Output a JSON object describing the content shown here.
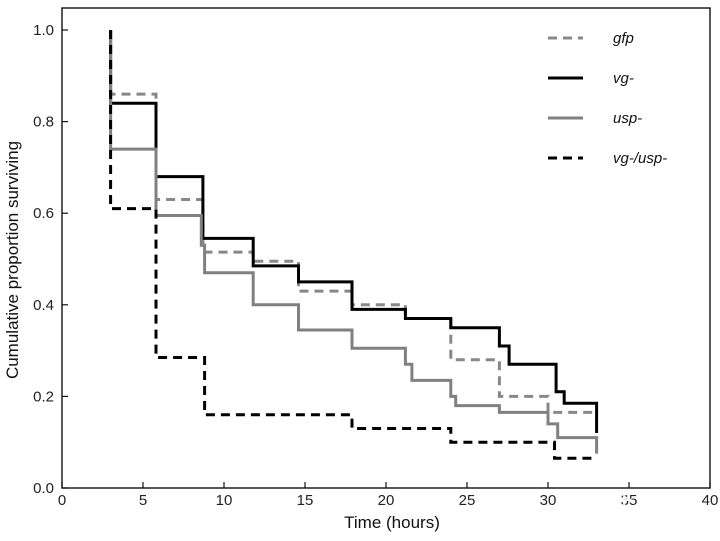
{
  "chart_data": {
    "type": "line",
    "step": true,
    "xlabel": "Time (hours)",
    "ylabel": "Cumulative proportion surviving",
    "xlim": [
      0,
      40
    ],
    "ylim": [
      0,
      1.0
    ],
    "xticks": [
      0,
      5,
      10,
      15,
      20,
      25,
      30,
      35,
      40
    ],
    "yticks": [
      0.0,
      0.2,
      0.4,
      0.6,
      0.8,
      1.0
    ],
    "grid": false,
    "legend_position": "top-right",
    "series": [
      {
        "name": "gfp",
        "color": "#888888",
        "dash": "dashed",
        "x": [
          3.0,
          3.0,
          5.8,
          5.8,
          8.7,
          8.7,
          11.8,
          11.8,
          14.6,
          14.6,
          17.9,
          17.9,
          21.2,
          21.2,
          24.0,
          24.0,
          27.0,
          27.0,
          30.0,
          30.0,
          33.0
        ],
        "y": [
          1.0,
          0.86,
          0.86,
          0.63,
          0.63,
          0.515,
          0.515,
          0.495,
          0.495,
          0.43,
          0.43,
          0.4,
          0.4,
          0.37,
          0.37,
          0.28,
          0.28,
          0.2,
          0.2,
          0.165,
          0.165
        ]
      },
      {
        "name": "vg-",
        "color": "#000000",
        "dash": "solid",
        "x": [
          3.0,
          3.0,
          5.8,
          5.8,
          8.7,
          8.7,
          11.8,
          11.8,
          14.6,
          14.6,
          17.9,
          17.9,
          21.2,
          21.2,
          24.0,
          24.0,
          27.0,
          27.0,
          27.6,
          27.6,
          30.5,
          30.5,
          31.0,
          31.0,
          33.0,
          33.0
        ],
        "y": [
          1.0,
          0.84,
          0.84,
          0.68,
          0.68,
          0.545,
          0.545,
          0.485,
          0.485,
          0.45,
          0.45,
          0.39,
          0.39,
          0.37,
          0.37,
          0.35,
          0.35,
          0.31,
          0.31,
          0.27,
          0.27,
          0.21,
          0.21,
          0.185,
          0.185,
          0.12
        ]
      },
      {
        "name": "usp-",
        "color": "#808080",
        "dash": "solid",
        "x": [
          3.0,
          3.0,
          5.8,
          5.8,
          8.6,
          8.6,
          8.8,
          8.8,
          11.8,
          11.8,
          14.6,
          14.6,
          17.9,
          17.9,
          21.2,
          21.2,
          21.6,
          21.6,
          24.0,
          24.0,
          24.3,
          24.3,
          27.0,
          27.0,
          30.0,
          30.0,
          30.6,
          30.6,
          33.0,
          33.0
        ],
        "y": [
          1.0,
          0.74,
          0.74,
          0.595,
          0.595,
          0.53,
          0.53,
          0.47,
          0.47,
          0.4,
          0.4,
          0.345,
          0.345,
          0.305,
          0.305,
          0.27,
          0.27,
          0.235,
          0.235,
          0.2,
          0.2,
          0.18,
          0.18,
          0.165,
          0.165,
          0.14,
          0.14,
          0.11,
          0.11,
          0.075
        ]
      },
      {
        "name": "vg-/usp-",
        "color": "#000000",
        "dash": "dashed",
        "x": [
          3.0,
          3.0,
          5.8,
          5.8,
          8.8,
          8.8,
          17.9,
          17.9,
          24.0,
          24.0,
          30.4,
          30.4,
          33.0
        ],
        "y": [
          1.0,
          0.61,
          0.61,
          0.285,
          0.285,
          0.16,
          0.16,
          0.13,
          0.13,
          0.1,
          0.1,
          0.065,
          0.065
        ]
      }
    ]
  },
  "watermark": {
    "text": "知乎 @若水"
  }
}
